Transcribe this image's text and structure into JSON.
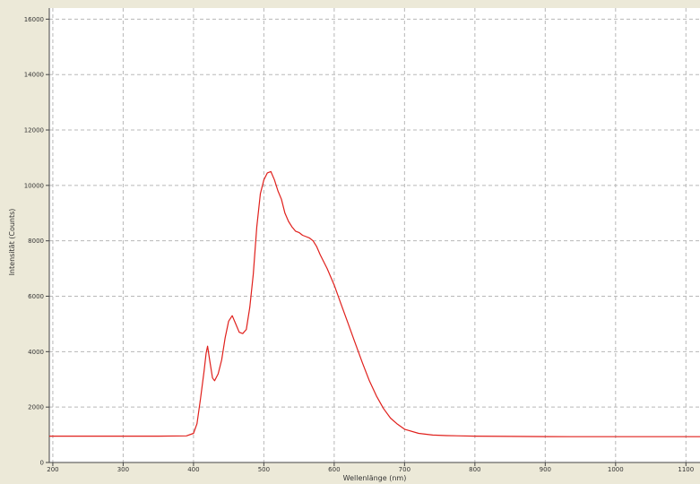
{
  "chart_data": {
    "type": "line",
    "title": "",
    "xlabel": "Wellenlänge (nm)",
    "ylabel": "Intensität (Counts)",
    "xlim": [
      195,
      1120
    ],
    "ylim": [
      0,
      16400
    ],
    "xticks": [
      200,
      300,
      400,
      500,
      600,
      700,
      800,
      900,
      1000,
      1100
    ],
    "yticks": [
      0,
      2000,
      4000,
      6000,
      8000,
      10000,
      12000,
      14000,
      16000
    ],
    "ytick_labels": [
      "0",
      "2000",
      "4000",
      "6000",
      "8000",
      "10000",
      "12000",
      "14000",
      "16000"
    ],
    "grid": true,
    "legend": "none",
    "series": [
      {
        "color": "#e0201c",
        "x": [
          195,
          250,
          300,
          350,
          390,
          400,
          405,
          410,
          415,
          418,
          420,
          423,
          427,
          430,
          435,
          440,
          445,
          450,
          455,
          460,
          465,
          470,
          475,
          480,
          485,
          490,
          495,
          500,
          505,
          510,
          515,
          520,
          525,
          530,
          535,
          540,
          545,
          550,
          555,
          560,
          565,
          570,
          575,
          580,
          590,
          600,
          610,
          620,
          630,
          640,
          650,
          660,
          670,
          680,
          690,
          700,
          720,
          740,
          760,
          780,
          800,
          850,
          900,
          950,
          1000,
          1050,
          1100,
          1120
        ],
        "y": [
          950,
          950,
          950,
          950,
          960,
          1050,
          1400,
          2300,
          3300,
          3950,
          4200,
          3700,
          3050,
          2950,
          3200,
          3700,
          4500,
          5100,
          5300,
          5000,
          4700,
          4650,
          4800,
          5600,
          6800,
          8500,
          9700,
          10200,
          10450,
          10500,
          10200,
          9800,
          9500,
          9000,
          8700,
          8500,
          8350,
          8300,
          8200,
          8150,
          8100,
          8000,
          7800,
          7500,
          7000,
          6400,
          5700,
          5000,
          4300,
          3600,
          2950,
          2400,
          1950,
          1600,
          1380,
          1200,
          1050,
          990,
          970,
          960,
          950,
          940,
          935,
          930,
          930,
          930,
          930,
          930
        ]
      }
    ]
  }
}
